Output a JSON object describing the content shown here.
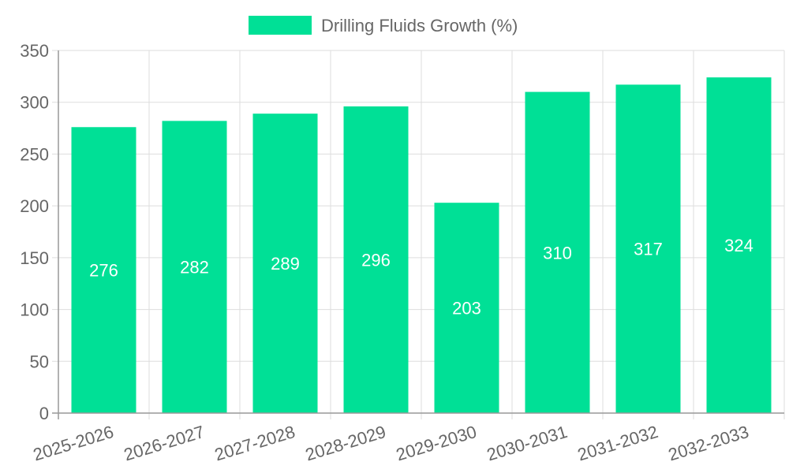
{
  "chart_data": {
    "type": "bar",
    "categories": [
      "2025-2026",
      "2026-2027",
      "2027-2028",
      "2028-2029",
      "2029-2030",
      "2030-2031",
      "2031-2032",
      "2032-2033"
    ],
    "series": [
      {
        "name": "Drilling Fluids Growth (%)",
        "values": [
          276,
          282,
          289,
          296,
          203,
          310,
          317,
          324
        ],
        "color": "#00e096"
      }
    ],
    "yticks": [
      "0",
      "50",
      "100",
      "150",
      "200",
      "250",
      "300",
      "350"
    ],
    "ylim": [
      0,
      350
    ],
    "grid": true,
    "legend_position": "top-center",
    "data_labels": [
      "276",
      "282",
      "289",
      "296",
      "203",
      "310",
      "317",
      "324"
    ]
  },
  "colors": {
    "grid": "#dddddd",
    "axis": "#999999",
    "text": "#666666",
    "label": "#ffffff"
  }
}
